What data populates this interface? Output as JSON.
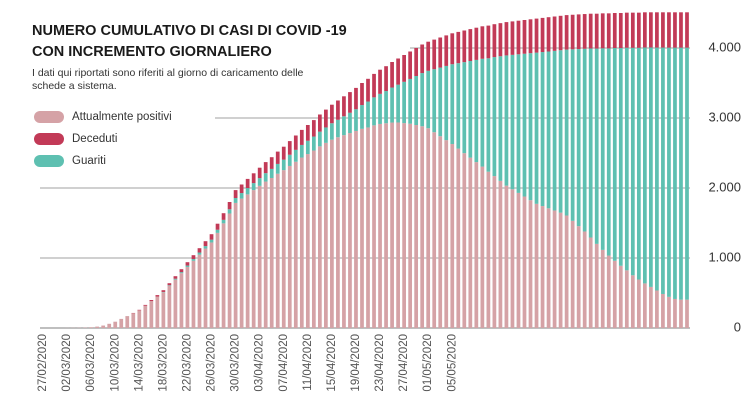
{
  "chart_data": {
    "type": "stacked-bar",
    "title": [
      "NUMERO CUMULATIVO DI CASI DI COVID -19",
      "CON INCREMENTO GIORNALIERO"
    ],
    "subtitle": [
      "I dati qui riportati sono riferiti al giorno di caricamento delle",
      "schede a sistema."
    ],
    "categories": [
      "27/02/2020",
      null,
      null,
      null,
      "02/03/2020",
      null,
      null,
      null,
      "06/03/2020",
      null,
      null,
      null,
      "10/03/2020",
      null,
      null,
      null,
      "14/03/2020",
      null,
      null,
      null,
      "18/03/2020",
      null,
      null,
      null,
      "22/03/2020",
      null,
      null,
      null,
      "26/03/2020",
      null,
      null,
      null,
      "30/03/2020",
      null,
      null,
      null,
      "03/04/2020",
      null,
      null,
      null,
      "07/04/2020",
      null,
      null,
      null,
      "11/04/2020",
      null,
      null,
      null,
      "15/04/2020",
      null,
      null,
      null,
      "19/04/2020",
      null,
      null,
      null,
      "23/04/2020",
      null,
      null,
      null,
      "27/04/2020",
      null,
      null,
      null,
      "01/05/2020",
      null,
      null,
      null,
      "05/05/2020",
      null,
      null,
      null,
      null,
      null,
      null,
      null,
      null,
      null,
      null,
      null,
      null,
      null,
      null,
      null,
      null,
      null,
      null,
      null,
      null,
      null,
      null,
      null,
      null,
      null,
      null,
      null,
      null,
      null,
      null,
      null,
      null,
      null,
      null,
      null,
      null,
      null,
      null,
      null
    ],
    "series": [
      {
        "name": "Attualmente positivi",
        "color": "#d5a2a6",
        "values": [
          0,
          0,
          0,
          0,
          1,
          2,
          3,
          5,
          10,
          20,
          35,
          60,
          90,
          130,
          170,
          210,
          252,
          318,
          384,
          450,
          510,
          602,
          692,
          783,
          872,
          960,
          1048,
          1135,
          1222,
          1359,
          1495,
          1636,
          1787,
          1848,
          1909,
          1970,
          2031,
          2092,
          2143,
          2204,
          2255,
          2315,
          2375,
          2435,
          2485,
          2535,
          2595,
          2645,
          2690,
          2725,
          2755,
          2785,
          2815,
          2845,
          2865,
          2895,
          2915,
          2925,
          2935,
          2936,
          2927,
          2918,
          2900,
          2882,
          2854,
          2797,
          2740,
          2684,
          2628,
          2563,
          2498,
          2434,
          2370,
          2306,
          2233,
          2170,
          2102,
          2034,
          1982,
          1930,
          1878,
          1826,
          1774,
          1742,
          1710,
          1679,
          1648,
          1607,
          1531,
          1455,
          1379,
          1293,
          1202,
          1116,
          1035,
          960,
          889,
          824,
          753,
          693,
          637,
          587,
          536,
          486,
          445,
          415,
          405,
          405
        ]
      },
      {
        "name": "Deceduti",
        "color": "#c23a57",
        "values": [
          0,
          0,
          0,
          0,
          0,
          0,
          0,
          0,
          0,
          0,
          0,
          0,
          0,
          0,
          0,
          5,
          8,
          12,
          16,
          20,
          25,
          30,
          36,
          42,
          48,
          55,
          62,
          70,
          78,
          86,
          95,
          104,
          113,
          122,
          131,
          140,
          149,
          158,
          167,
          176,
          185,
          195,
          205,
          215,
          225,
          235,
          245,
          255,
          265,
          275,
          285,
          295,
          305,
          315,
          325,
          335,
          345,
          355,
          365,
          374,
          383,
          392,
          400,
          408,
          416,
          423,
          430,
          436,
          442,
          447,
          452,
          456,
          460,
          464,
          467,
          470,
          473,
          476,
          478,
          480,
          482,
          484,
          486,
          488,
          490,
          491,
          492,
          493,
          494,
          495,
          496,
          497,
          498,
          499,
          500,
          500,
          501,
          501,
          502,
          502,
          503,
          503,
          504,
          504,
          505,
          505,
          505,
          505
        ]
      },
      {
        "name": "Guariti",
        "color": "#5ec0b1",
        "values": [
          0,
          0,
          0,
          0,
          0,
          0,
          0,
          0,
          0,
          0,
          0,
          0,
          0,
          0,
          0,
          0,
          0,
          0,
          0,
          0,
          5,
          8,
          12,
          15,
          20,
          25,
          30,
          35,
          40,
          45,
          50,
          60,
          70,
          80,
          90,
          100,
          110,
          120,
          130,
          140,
          150,
          160,
          170,
          180,
          190,
          200,
          210,
          220,
          235,
          250,
          270,
          290,
          310,
          340,
          370,
          400,
          430,
          460,
          500,
          540,
          590,
          640,
          700,
          760,
          820,
          900,
          980,
          1060,
          1140,
          1220,
          1300,
          1380,
          1460,
          1540,
          1620,
          1700,
          1780,
          1860,
          1920,
          1980,
          2040,
          2100,
          2160,
          2200,
          2240,
          2280,
          2320,
          2370,
          2450,
          2530,
          2610,
          2700,
          2790,
          2880,
          2960,
          3040,
          3110,
          3180,
          3250,
          3310,
          3370,
          3420,
          3470,
          3520,
          3560,
          3590,
          3600,
          3600
        ]
      }
    ],
    "ylim": [
      0,
      4500
    ],
    "yticks": [
      0,
      {
        "value": 1000,
        "label": "1.000"
      },
      {
        "value": 2000,
        "label": "2.000"
      },
      {
        "value": 3000,
        "label": "3.000"
      },
      {
        "value": 4000,
        "label": "4.000"
      }
    ],
    "grid": true
  }
}
